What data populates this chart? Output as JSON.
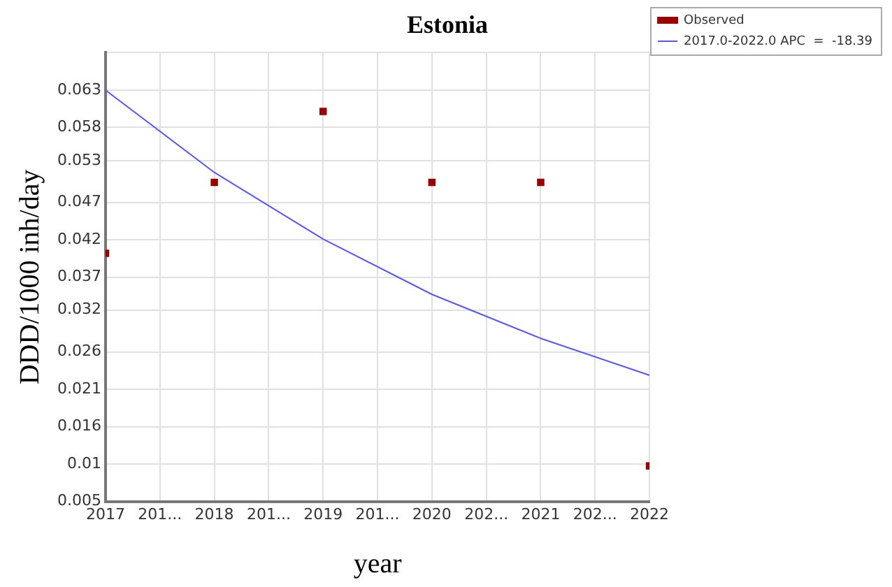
{
  "chart_data": {
    "type": "scatter",
    "title": "Estonia",
    "xlabel": "year",
    "ylabel": "DDD/1000 inh/day",
    "x": [
      2017,
      2018,
      2019,
      2020,
      2021,
      2022
    ],
    "series": [
      {
        "name": "Observed",
        "type": "scatter",
        "color": "#990000",
        "marker": "square",
        "values": [
          0.04,
          0.05,
          0.06,
          0.05,
          0.05,
          0.01
        ]
      },
      {
        "name": "2017.0-2022.0 APC  =  -18.39",
        "type": "line",
        "color": "#5555ff",
        "marker": "none",
        "line_style": "solid",
        "values": [
          0.063,
          0.0514,
          0.042,
          0.0342,
          0.028,
          0.0228
        ]
      }
    ],
    "xlim": [
      2017,
      2022
    ],
    "xticks": [
      2017,
      {
        "value": 2017.5,
        "label": "201..."
      },
      2018,
      {
        "value": 2018.5,
        "label": "201..."
      },
      2019,
      {
        "value": 2019.5,
        "label": "201..."
      },
      2020,
      {
        "value": 2020.5,
        "label": "202..."
      },
      2021,
      {
        "value": 2021.5,
        "label": "202..."
      },
      2022
    ],
    "ylim": [
      0.005,
      0.0683
    ],
    "yticks": [
      0.005,
      {
        "value": 0.01027,
        "label": "0.01"
      },
      {
        "value": 0.01555,
        "label": "0.016"
      },
      {
        "value": 0.02082,
        "label": "0.021"
      },
      {
        "value": 0.02609,
        "label": "0.026"
      },
      0.032,
      {
        "value": 0.03664,
        "label": "0.037"
      },
      {
        "value": 0.04191,
        "label": "0.042"
      },
      {
        "value": 0.04718,
        "label": "0.047"
      },
      0.053,
      {
        "value": 0.05773,
        "label": "0.058"
      },
      0.063,
      {
        "value": 0.0683,
        "label": null
      }
    ],
    "grid": true,
    "legend": "top right"
  }
}
